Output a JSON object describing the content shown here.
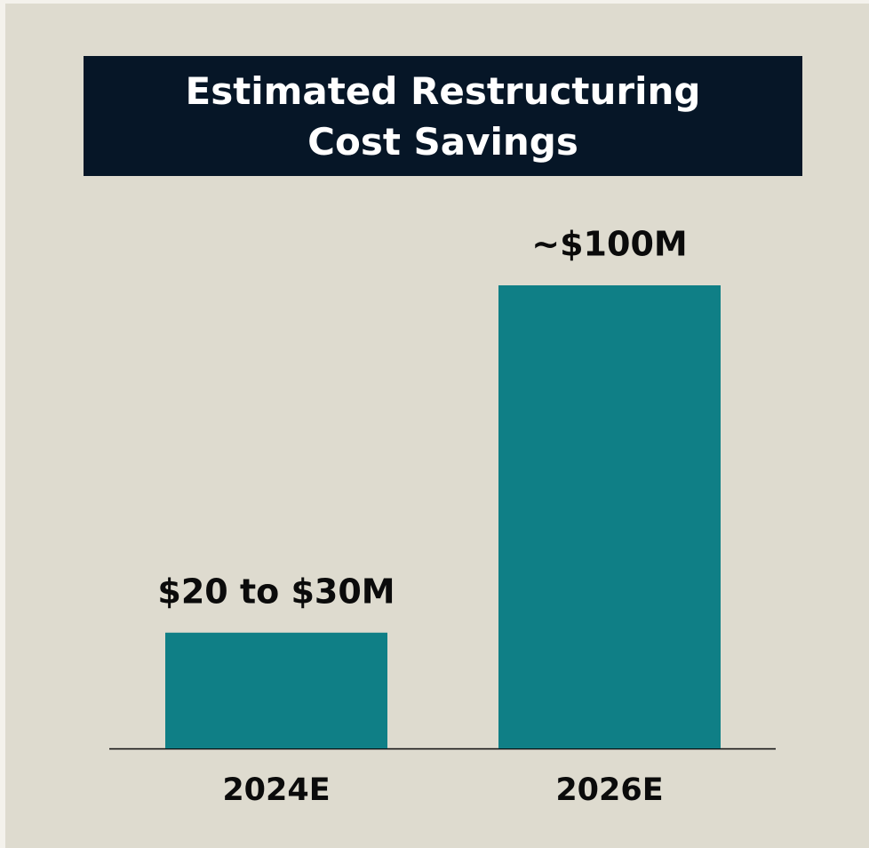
{
  "chart_data": {
    "type": "bar",
    "title": "Estimated Restructuring Cost Savings",
    "categories": [
      "2024E",
      "2026E"
    ],
    "values": [
      25,
      100
    ],
    "value_labels": [
      "$20 to $30M",
      "~$100M"
    ],
    "color": "#0f7f86"
  }
}
